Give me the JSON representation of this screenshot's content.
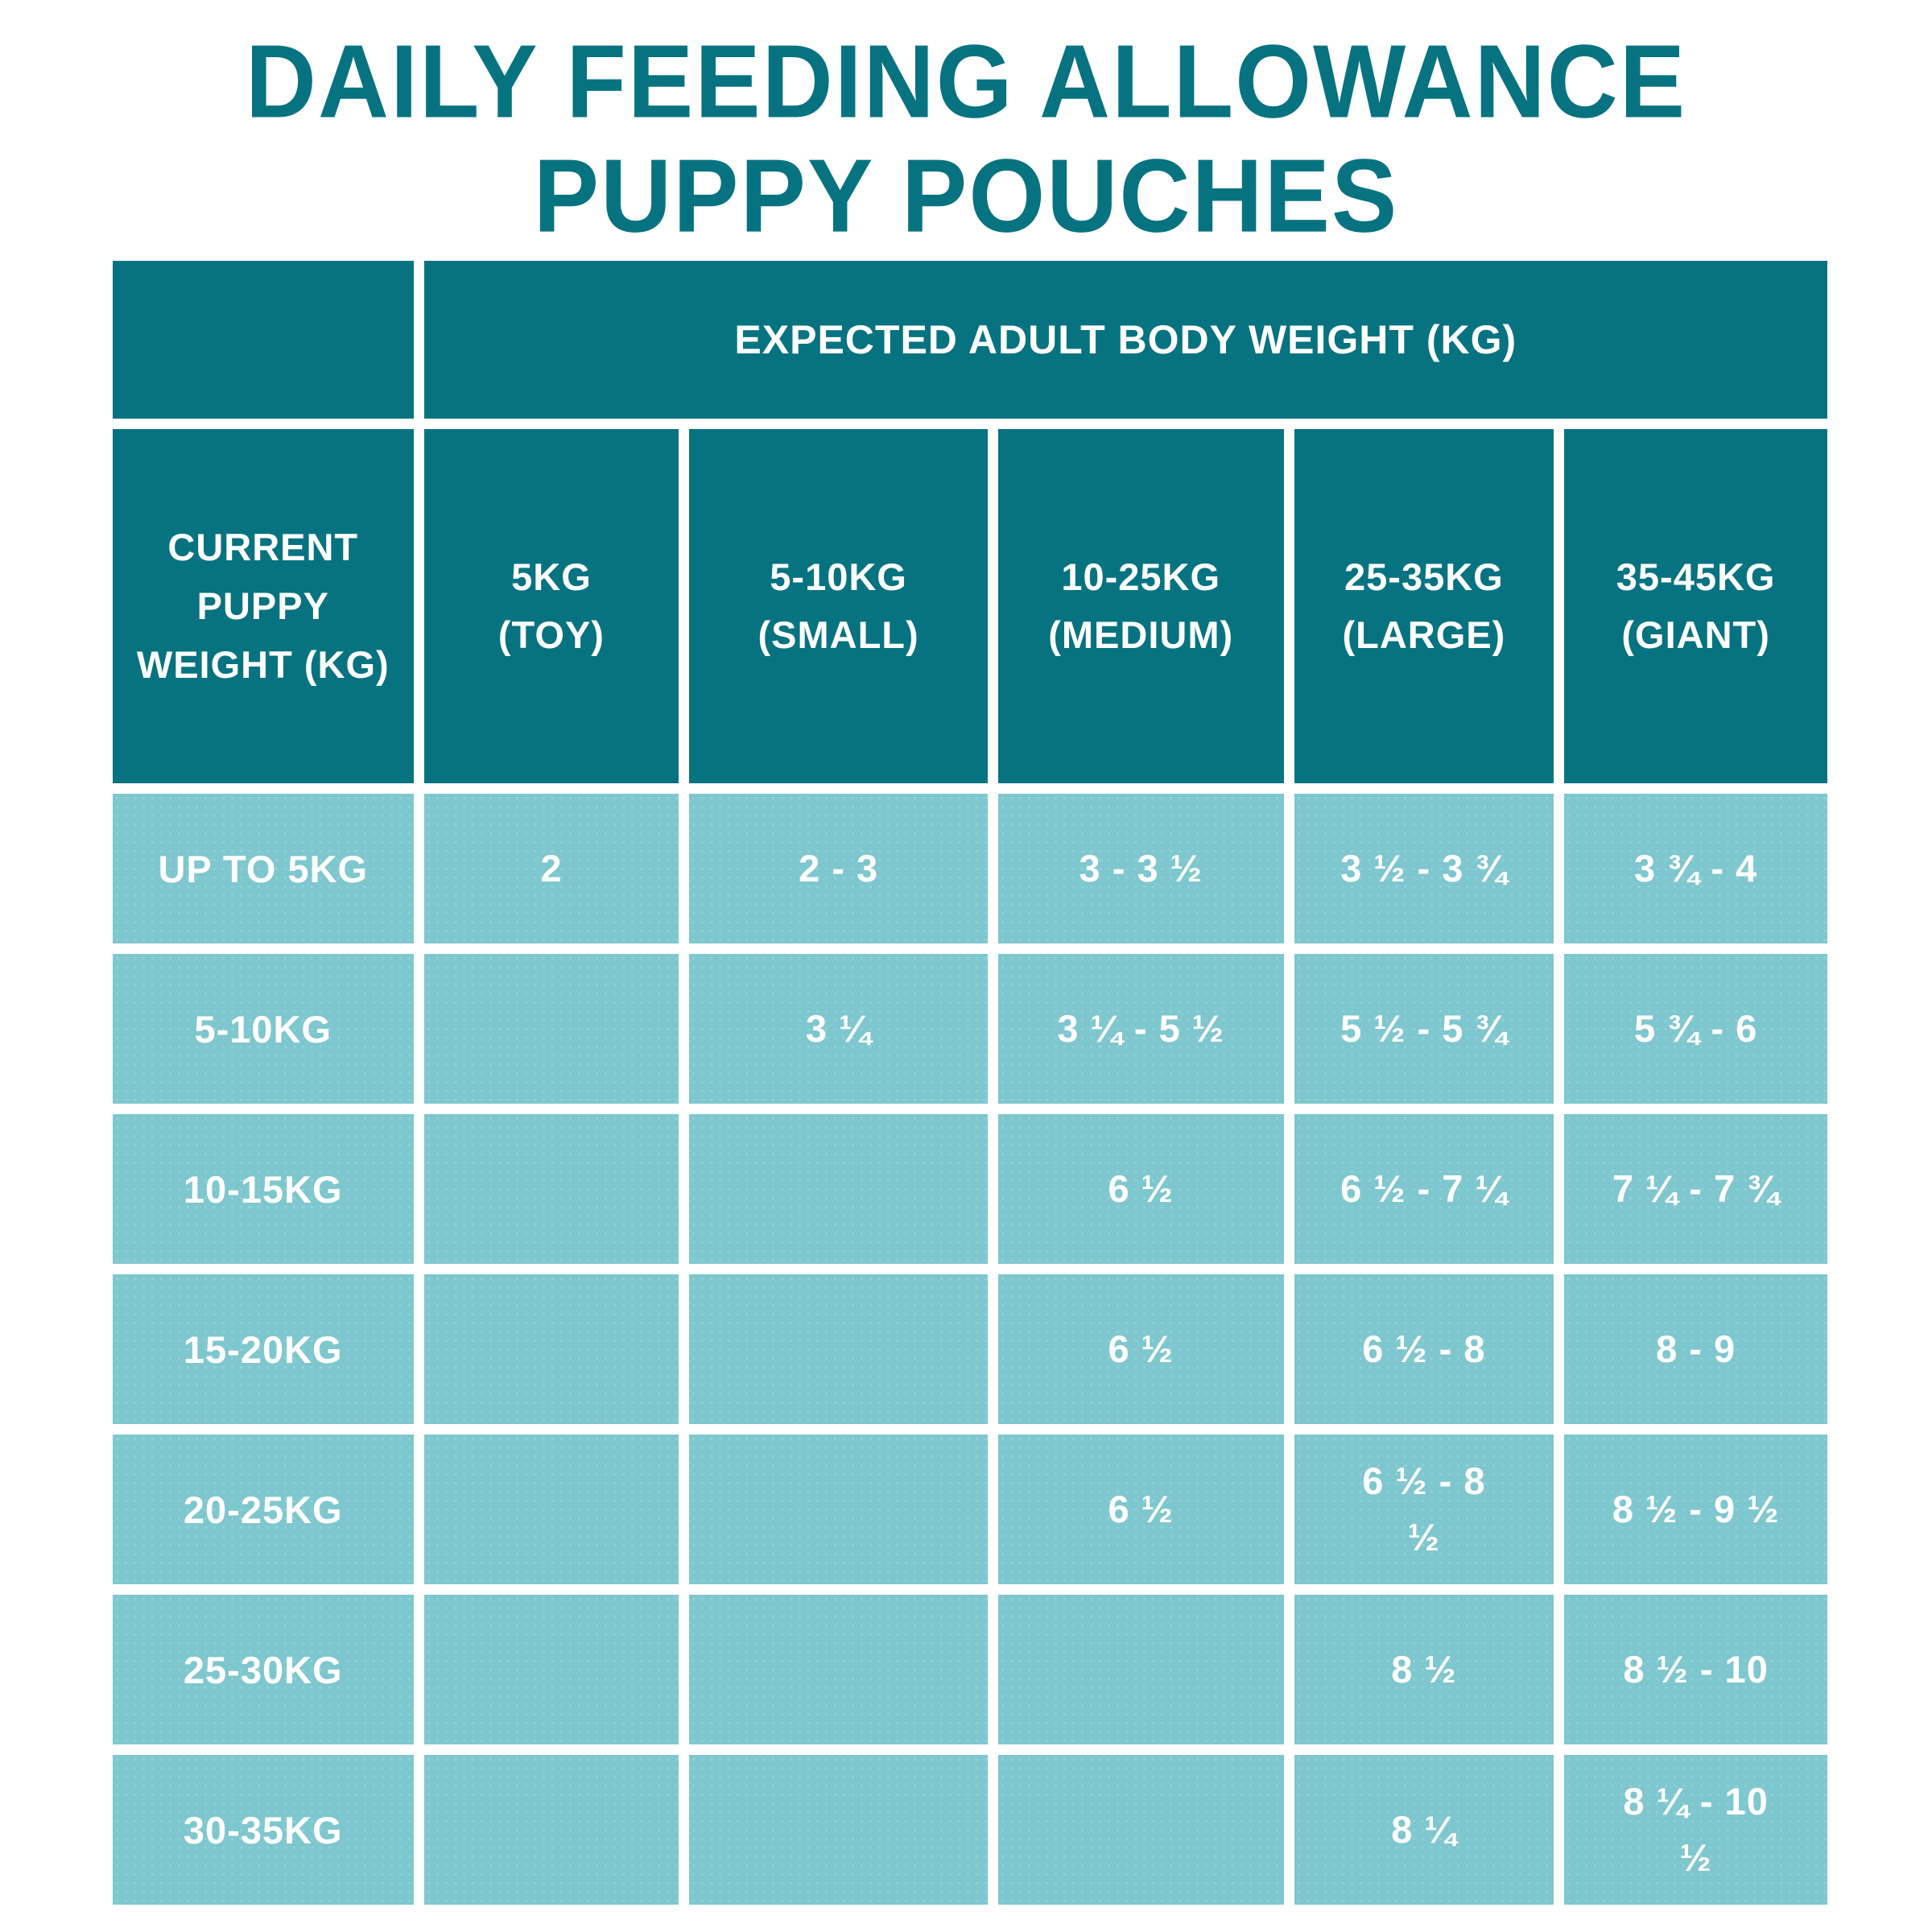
{
  "title": {
    "line1": "DAILY FEEDING ALLOWANCE",
    "line2": "PUPPY POUCHES"
  },
  "colors": {
    "dark_teal": "#077380",
    "light_teal": "#7fc7ce",
    "text_on_teal": "#ffffff",
    "page_background": "#ffffff"
  },
  "table": {
    "span_header": "EXPECTED ADULT BODY WEIGHT (KG)",
    "col_headers": [
      "CURRENT\nPUPPY\nWEIGHT (KG)",
      "5KG\n(TOY)",
      "5-10KG\n(SMALL)",
      "10-25KG\n(MEDIUM)",
      "25-35KG\n(LARGE)",
      "35-45KG\n(GIANT)"
    ],
    "rows": [
      {
        "label": "UP TO 5KG",
        "values": [
          "2",
          "2 - 3",
          "3 - 3 ½",
          "3 ½ - 3 ¾",
          "3 ¾ - 4"
        ]
      },
      {
        "label": "5-10KG",
        "values": [
          "",
          "3 ¼",
          "3 ¼ - 5 ½",
          "5 ½ - 5 ¾",
          "5 ¾ - 6"
        ]
      },
      {
        "label": "10-15KG",
        "values": [
          "",
          "",
          "6 ½",
          "6 ½ - 7 ¼",
          "7 ¼ - 7 ¾"
        ]
      },
      {
        "label": "15-20KG",
        "values": [
          "",
          "",
          "6 ½",
          "6 ½ - 8",
          "8 - 9"
        ]
      },
      {
        "label": "20-25KG",
        "values": [
          "",
          "",
          "6 ½",
          "6 ½ - 8\n½",
          "8 ½ - 9 ½"
        ]
      },
      {
        "label": "25-30KG",
        "values": [
          "",
          "",
          "",
          "8 ½",
          "8 ½ - 10"
        ]
      },
      {
        "label": "30-35KG",
        "values": [
          "",
          "",
          "",
          "8 ¼",
          "8 ¼ - 10\n½"
        ]
      }
    ]
  },
  "chart_data": {
    "type": "table",
    "title": "DAILY FEEDING ALLOWANCE PUPPY POUCHES",
    "column_group_header": "EXPECTED ADULT BODY WEIGHT (KG)",
    "columns": [
      "CURRENT PUPPY WEIGHT (KG)",
      "5KG (TOY)",
      "5-10KG (SMALL)",
      "10-25KG (MEDIUM)",
      "25-35KG (LARGE)",
      "35-45KG (GIANT)"
    ],
    "rows": [
      [
        "UP TO 5KG",
        "2",
        "2 - 3",
        "3 - 3 ½",
        "3 ½ - 3 ¾",
        "3 ¾ - 4"
      ],
      [
        "5-10KG",
        "",
        "3 ¼",
        "3 ¼ - 5 ½",
        "5 ½ - 5 ¾",
        "5 ¾ - 6"
      ],
      [
        "10-15KG",
        "",
        "",
        "6 ½",
        "6 ½ - 7 ¼",
        "7 ¼ - 7 ¾"
      ],
      [
        "15-20KG",
        "",
        "",
        "6 ½",
        "6 ½ - 8",
        "8 - 9"
      ],
      [
        "20-25KG",
        "",
        "",
        "6 ½",
        "6 ½ - 8 ½",
        "8 ½ - 9 ½"
      ],
      [
        "25-30KG",
        "",
        "",
        "",
        "8 ½",
        "8 ½ - 10"
      ],
      [
        "30-35KG",
        "",
        "",
        "",
        "8 ¼",
        "8 ¼ - 10 ½"
      ]
    ]
  }
}
